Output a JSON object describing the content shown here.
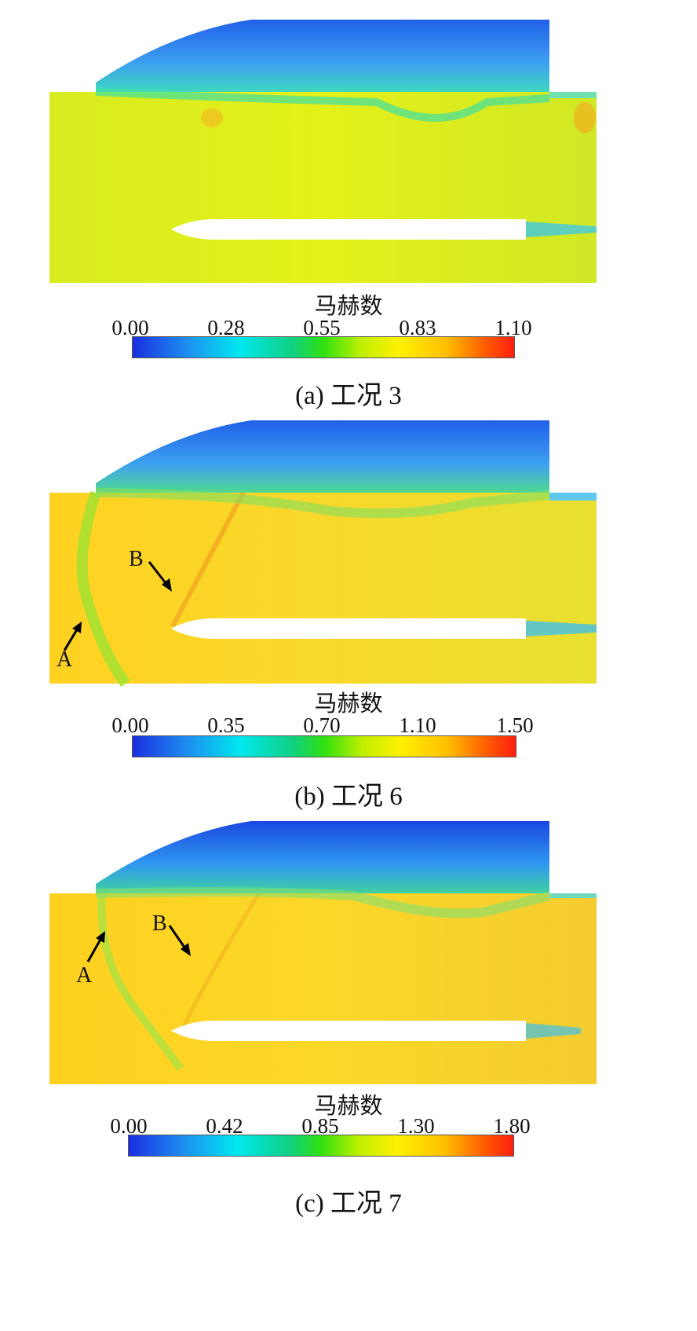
{
  "colorbar_title": "马赫数",
  "panels": [
    {
      "id": "a",
      "caption": "(a)  工况 3",
      "ticks": [
        "0.00",
        "0.28",
        "0.55",
        "0.83",
        "1.10"
      ],
      "colors": {
        "bg": "#dcee18",
        "cavity": "#3c8cf0"
      },
      "labels": []
    },
    {
      "id": "b",
      "caption": "(b)  工况 6",
      "ticks": [
        "0.00",
        "0.35",
        "0.70",
        "1.10",
        "1.50"
      ],
      "colors": {
        "bg": "#ffd21e",
        "cavity": "#3c8cf0"
      },
      "labels": [
        "A",
        "B"
      ]
    },
    {
      "id": "c",
      "caption": "(c)  工况 7",
      "ticks": [
        "0.00",
        "0.42",
        "0.85",
        "1.30",
        "1.80"
      ],
      "colors": {
        "bg": "#ffd01e",
        "cavity": "#2f78ec"
      },
      "labels": [
        "A",
        "B"
      ]
    }
  ]
}
